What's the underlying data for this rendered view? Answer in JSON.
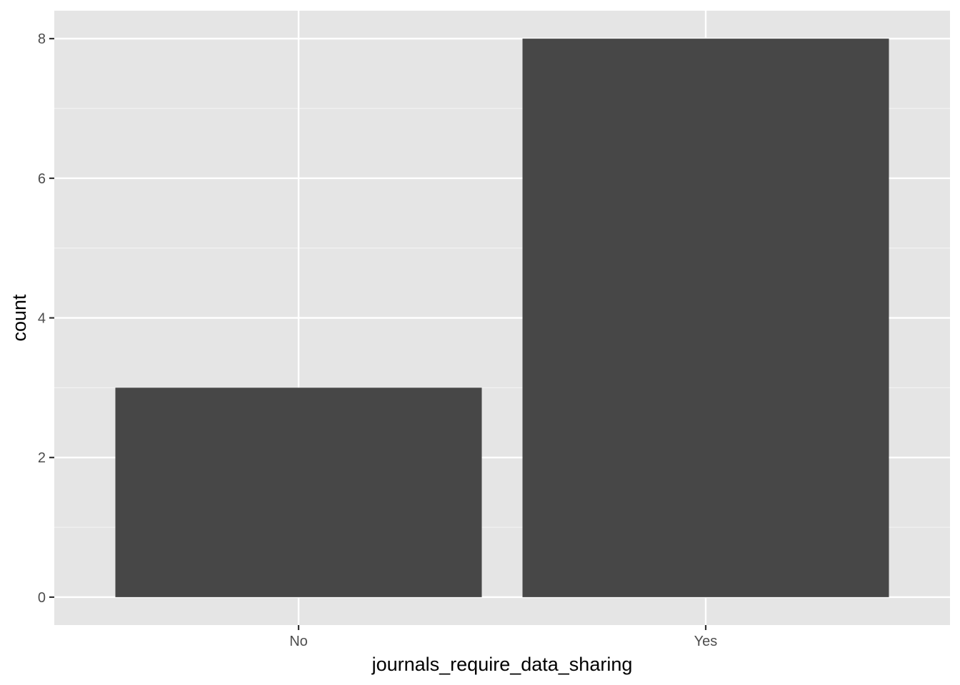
{
  "chart_data": {
    "type": "bar",
    "categories": [
      "No",
      "Yes"
    ],
    "values": [
      3,
      8
    ],
    "title": "",
    "xlabel": "journals_require_data_sharing",
    "ylabel": "count",
    "ylim": [
      -0.4,
      8.4
    ],
    "yticks": [
      "0",
      "2",
      "4",
      "6",
      "8"
    ],
    "grid": true,
    "legend": "none",
    "colors": {
      "panel_background": "#e5e5e5",
      "grid_major": "#ffffff",
      "grid_minor": "#f2f2f2",
      "bar_fill": "#474747",
      "tick_color": "#333333"
    }
  }
}
